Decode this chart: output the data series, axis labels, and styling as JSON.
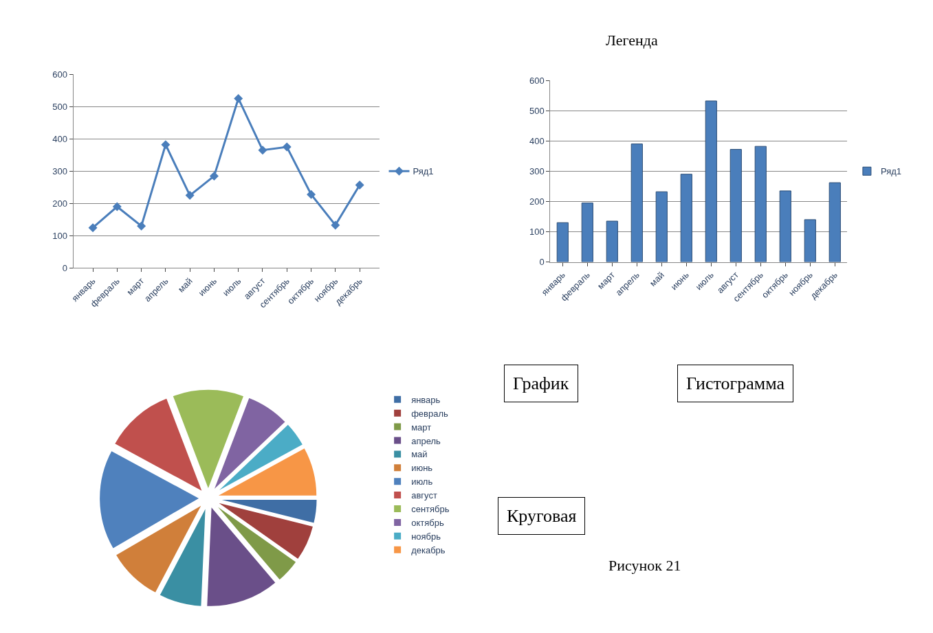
{
  "chart_data": [
    {
      "type": "line",
      "categories": [
        "январь",
        "февраль",
        "март",
        "апрель",
        "май",
        "июнь",
        "июль",
        "август",
        "сентябрь",
        "октябрь",
        "ноябрь",
        "декабрь"
      ],
      "series": [
        {
          "name": "Ряд1",
          "color": "#4a7ebb",
          "values": [
            125,
            190,
            130,
            382,
            225,
            285,
            525,
            365,
            375,
            228,
            133,
            257
          ]
        }
      ],
      "ylim": [
        0,
        600
      ],
      "yticks": [
        0,
        100,
        200,
        300,
        400,
        500,
        600
      ],
      "grid": "y",
      "legend": "right",
      "marker": "diamond",
      "line_style": "solid",
      "annotations": [
        "Легенда",
        "График"
      ]
    },
    {
      "type": "bar",
      "categories": [
        "январь",
        "февраль",
        "март",
        "апрель",
        "май",
        "июнь",
        "июль",
        "август",
        "сентябрь",
        "октябрь",
        "ноябрь",
        "декабрь"
      ],
      "series": [
        {
          "name": "Ряд1",
          "color": "#4a7ebb",
          "values": [
            130,
            195,
            135,
            390,
            232,
            290,
            532,
            372,
            382,
            235,
            140,
            262
          ]
        }
      ],
      "ylim": [
        0,
        600
      ],
      "yticks": [
        0,
        100,
        200,
        300,
        400,
        500,
        600
      ],
      "grid": "y",
      "legend": "right",
      "annotations": [
        "Гистограмма"
      ]
    },
    {
      "type": "pie",
      "categories": [
        "январь",
        "февраль",
        "март",
        "апрель",
        "май",
        "июнь",
        "июль",
        "август",
        "сентябрь",
        "октябрь",
        "ноябрь",
        "декабрь"
      ],
      "values": [
        3.9,
        5.9,
        4.0,
        11.9,
        7.0,
        8.9,
        16.3,
        11.3,
        11.6,
        7.1,
        4.1,
        8.0
      ],
      "colors": [
        "#3f6ea5",
        "#a0403d",
        "#7f9a48",
        "#6a4f89",
        "#3a8fa3",
        "#d07f3a",
        "#4f81bd",
        "#c0504d",
        "#9bbb59",
        "#8064a2",
        "#4bacc6",
        "#f79646"
      ],
      "legend": "right",
      "annotations": [
        "Круговая",
        "Рисунок 21"
      ]
    }
  ]
}
